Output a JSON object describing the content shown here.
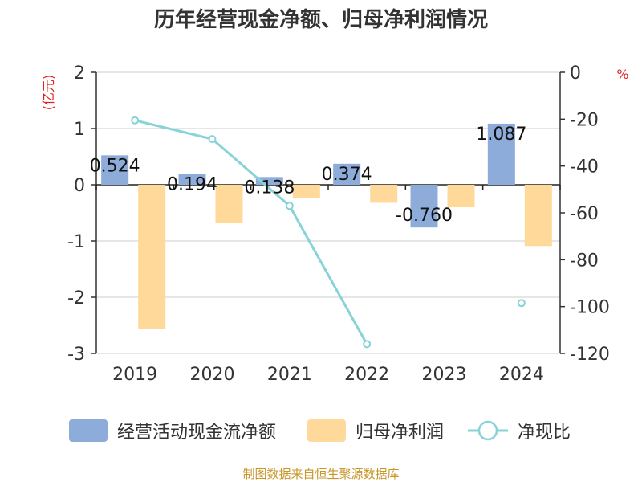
{
  "chart_data": {
    "type": "bar",
    "title": "历年经营现金净额、归母净利润情况",
    "categories": [
      "2019",
      "2020",
      "2021",
      "2022",
      "2023",
      "2024"
    ],
    "series": [
      {
        "name": "经营活动现金流净额",
        "axis": "left",
        "color": "#8eacd9",
        "values": [
          0.524,
          0.194,
          0.138,
          0.374,
          -0.76,
          1.087
        ],
        "labels": [
          "0.524",
          "0.194",
          "0.138",
          "0.374",
          "-0.760",
          "1.087"
        ]
      },
      {
        "name": "归母净利润",
        "axis": "left",
        "color": "#ffd99a",
        "values": [
          -2.56,
          -0.68,
          -0.23,
          -0.32,
          -0.4,
          -1.09
        ]
      },
      {
        "name": "净现比",
        "axis": "right",
        "type": "line",
        "color": "#88d3d8",
        "values": [
          -20.5,
          -28.5,
          -57.0,
          -116.0,
          null,
          -98.5
        ]
      }
    ],
    "left_axis": {
      "unit": "(亿元)",
      "ylim": [
        -3,
        2
      ],
      "ticks": [
        2,
        1,
        0,
        -1,
        -2,
        -3
      ]
    },
    "right_axis": {
      "unit": "%",
      "ylim": [
        -120,
        0
      ],
      "ticks": [
        0,
        -20,
        -40,
        -60,
        -80,
        -100,
        -120
      ]
    },
    "legend": [
      "经营活动现金流净额",
      "归母净利润",
      "净现比"
    ],
    "source": "制图数据来自恒生聚源数据库"
  }
}
